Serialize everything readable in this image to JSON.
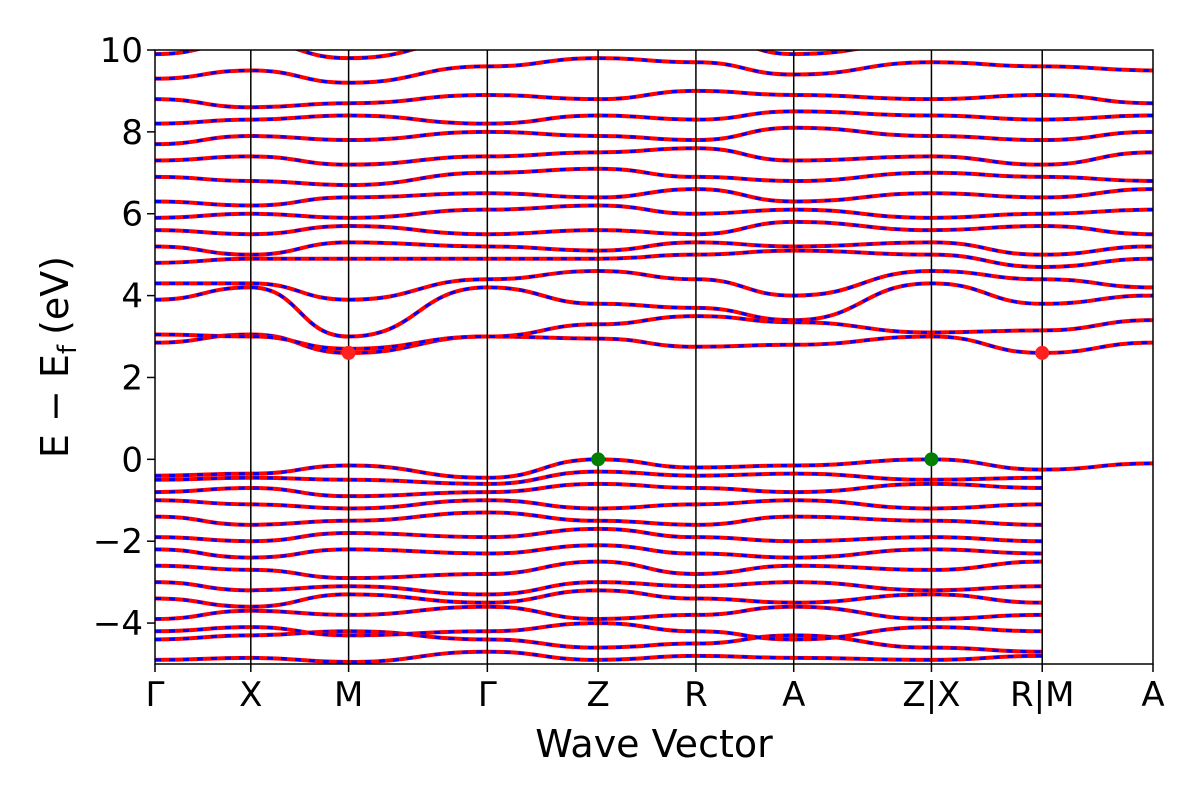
{
  "chart_data": {
    "type": "line",
    "title": "",
    "xlabel": "Wave Vector",
    "ylabel_main": "E − E",
    "ylabel_sub": "f",
    "ylabel_unit": "(eV)",
    "ylim": [
      -5,
      10
    ],
    "yticks": [
      10,
      8,
      6,
      4,
      2,
      0,
      -2,
      -4
    ],
    "yticklabels": [
      "10",
      "8",
      "6",
      "4",
      "2",
      "0",
      "−2",
      "−4"
    ],
    "xlim": [
      0,
      1
    ],
    "kpoints": [
      {
        "x": 0.0,
        "label": "Γ"
      },
      {
        "x": 0.096,
        "label": "X"
      },
      {
        "x": 0.194,
        "label": "M"
      },
      {
        "x": 0.333,
        "label": "Γ"
      },
      {
        "x": 0.444,
        "label": "Z"
      },
      {
        "x": 0.542,
        "label": "R"
      },
      {
        "x": 0.64,
        "label": "A"
      },
      {
        "x": 0.778,
        "label": "Z|X"
      },
      {
        "x": 0.889,
        "label": "R|M"
      },
      {
        "x": 1.0,
        "label": "A"
      }
    ],
    "series_colors": {
      "spin_up": "#ff0000",
      "spin_down": "#0000ff"
    },
    "band_edges": [
      {
        "type": "CBM",
        "x": 0.194,
        "y": 2.6,
        "color": "#ff2020"
      },
      {
        "type": "CBM",
        "x": 0.889,
        "y": 2.6,
        "color": "#ff2020"
      },
      {
        "type": "VBM",
        "x": 0.444,
        "y": 0.0,
        "color": "#008000"
      },
      {
        "type": "VBM",
        "x": 0.778,
        "y": 0.0,
        "color": "#008000"
      }
    ],
    "segments": [
      [
        0.0,
        0.194
      ],
      [
        0.194,
        0.333
      ],
      [
        0.333,
        0.444
      ],
      [
        0.444,
        0.542
      ],
      [
        0.542,
        0.64
      ],
      [
        0.64,
        0.778
      ],
      [
        0.778,
        0.889
      ],
      [
        0.889,
        1.0
      ]
    ],
    "bands": [
      {
        "y": [
          -4.9,
          -4.85,
          -4.95,
          -4.7,
          -4.9,
          -4.8,
          -4.85,
          -4.9,
          -4.8
        ]
      },
      {
        "y": [
          -4.4,
          -4.3,
          -4.2,
          -4.4,
          -4.6,
          -4.5,
          -4.3,
          -4.6,
          -4.7
        ]
      },
      {
        "y": [
          -4.2,
          -4.1,
          -4.3,
          -4.2,
          -4.0,
          -4.2,
          -4.4,
          -4.1,
          -4.2
        ]
      },
      {
        "y": [
          -3.9,
          -3.7,
          -3.8,
          -3.6,
          -3.9,
          -3.8,
          -3.6,
          -3.9,
          -3.8
        ]
      },
      {
        "y": [
          -3.4,
          -3.6,
          -3.3,
          -3.5,
          -3.2,
          -3.4,
          -3.5,
          -3.3,
          -3.5
        ]
      },
      {
        "y": [
          -3.0,
          -3.2,
          -3.1,
          -3.3,
          -3.0,
          -3.1,
          -3.0,
          -3.2,
          -3.1
        ]
      },
      {
        "y": [
          -2.6,
          -2.7,
          -2.9,
          -2.8,
          -2.5,
          -2.8,
          -2.6,
          -2.7,
          -2.5
        ]
      },
      {
        "y": [
          -2.2,
          -2.4,
          -2.2,
          -2.3,
          -2.1,
          -2.3,
          -2.4,
          -2.2,
          -2.3
        ]
      },
      {
        "y": [
          -1.9,
          -2.0,
          -1.8,
          -1.9,
          -1.7,
          -1.9,
          -2.0,
          -1.9,
          -2.0
        ]
      },
      {
        "y": [
          -1.4,
          -1.6,
          -1.5,
          -1.3,
          -1.5,
          -1.6,
          -1.4,
          -1.5,
          -1.6
        ]
      },
      {
        "y": [
          -1.0,
          -1.1,
          -1.2,
          -1.0,
          -1.2,
          -1.1,
          -1.0,
          -1.2,
          -1.1
        ]
      },
      {
        "y": [
          -0.8,
          -0.7,
          -0.9,
          -0.8,
          -0.6,
          -0.7,
          -0.8,
          -0.6,
          -0.7
        ]
      },
      {
        "y": [
          -0.5,
          -0.45,
          -0.5,
          -0.6,
          -0.3,
          -0.4,
          -0.35,
          -0.5,
          -0.45
        ]
      },
      {
        "y": [
          -0.4,
          -0.35,
          -0.15,
          -0.45,
          0.0,
          -0.2,
          -0.15,
          0.0,
          -0.25,
          -0.1
        ]
      },
      {
        "y": [
          2.85,
          3.05,
          2.6,
          3.0,
          2.95,
          2.75,
          2.8,
          3.0,
          2.6,
          2.85
        ]
      },
      {
        "y": [
          3.05,
          3.0,
          2.7,
          3.0,
          3.3,
          3.5,
          3.35,
          3.1,
          3.15,
          3.4
        ]
      },
      {
        "y": [
          3.9,
          4.2,
          3.0,
          4.2,
          3.8,
          3.7,
          3.4,
          4.3,
          3.8,
          4.0
        ]
      },
      {
        "y": [
          4.3,
          4.3,
          3.9,
          4.4,
          4.6,
          4.4,
          4.0,
          4.6,
          4.4,
          4.2
        ]
      },
      {
        "y": [
          4.8,
          4.9,
          4.9,
          4.9,
          4.9,
          5.0,
          5.1,
          5.0,
          4.7,
          4.9
        ]
      },
      {
        "y": [
          5.2,
          5.0,
          5.3,
          5.2,
          5.1,
          5.3,
          5.2,
          5.3,
          5.0,
          5.2
        ]
      },
      {
        "y": [
          5.6,
          5.5,
          5.7,
          5.5,
          5.6,
          5.5,
          5.8,
          5.6,
          5.7,
          5.5
        ]
      },
      {
        "y": [
          5.9,
          6.0,
          5.9,
          6.1,
          6.2,
          6.0,
          6.1,
          5.9,
          6.0,
          6.1
        ]
      },
      {
        "y": [
          6.3,
          6.2,
          6.4,
          6.5,
          6.4,
          6.6,
          6.3,
          6.5,
          6.4,
          6.6
        ]
      },
      {
        "y": [
          6.9,
          6.8,
          6.7,
          7.0,
          7.1,
          6.9,
          6.8,
          7.0,
          6.9,
          6.8
        ]
      },
      {
        "y": [
          7.3,
          7.4,
          7.2,
          7.4,
          7.5,
          7.6,
          7.3,
          7.4,
          7.2,
          7.5
        ]
      },
      {
        "y": [
          7.7,
          7.9,
          7.8,
          8.0,
          7.9,
          7.8,
          8.1,
          7.9,
          7.8,
          8.0
        ]
      },
      {
        "y": [
          8.2,
          8.3,
          8.4,
          8.2,
          8.4,
          8.3,
          8.5,
          8.4,
          8.3,
          8.4
        ]
      },
      {
        "y": [
          8.8,
          8.6,
          8.7,
          8.9,
          8.8,
          9.0,
          8.9,
          8.8,
          8.9,
          8.7
        ]
      },
      {
        "y": [
          9.3,
          9.5,
          9.2,
          9.6,
          9.8,
          9.7,
          9.4,
          9.7,
          9.6,
          9.5
        ]
      },
      {
        "y": [
          9.9,
          10.2,
          9.8,
          10.3,
          10.1,
          10.4,
          9.9,
          10.2,
          10.3,
          10.2
        ]
      }
    ]
  }
}
